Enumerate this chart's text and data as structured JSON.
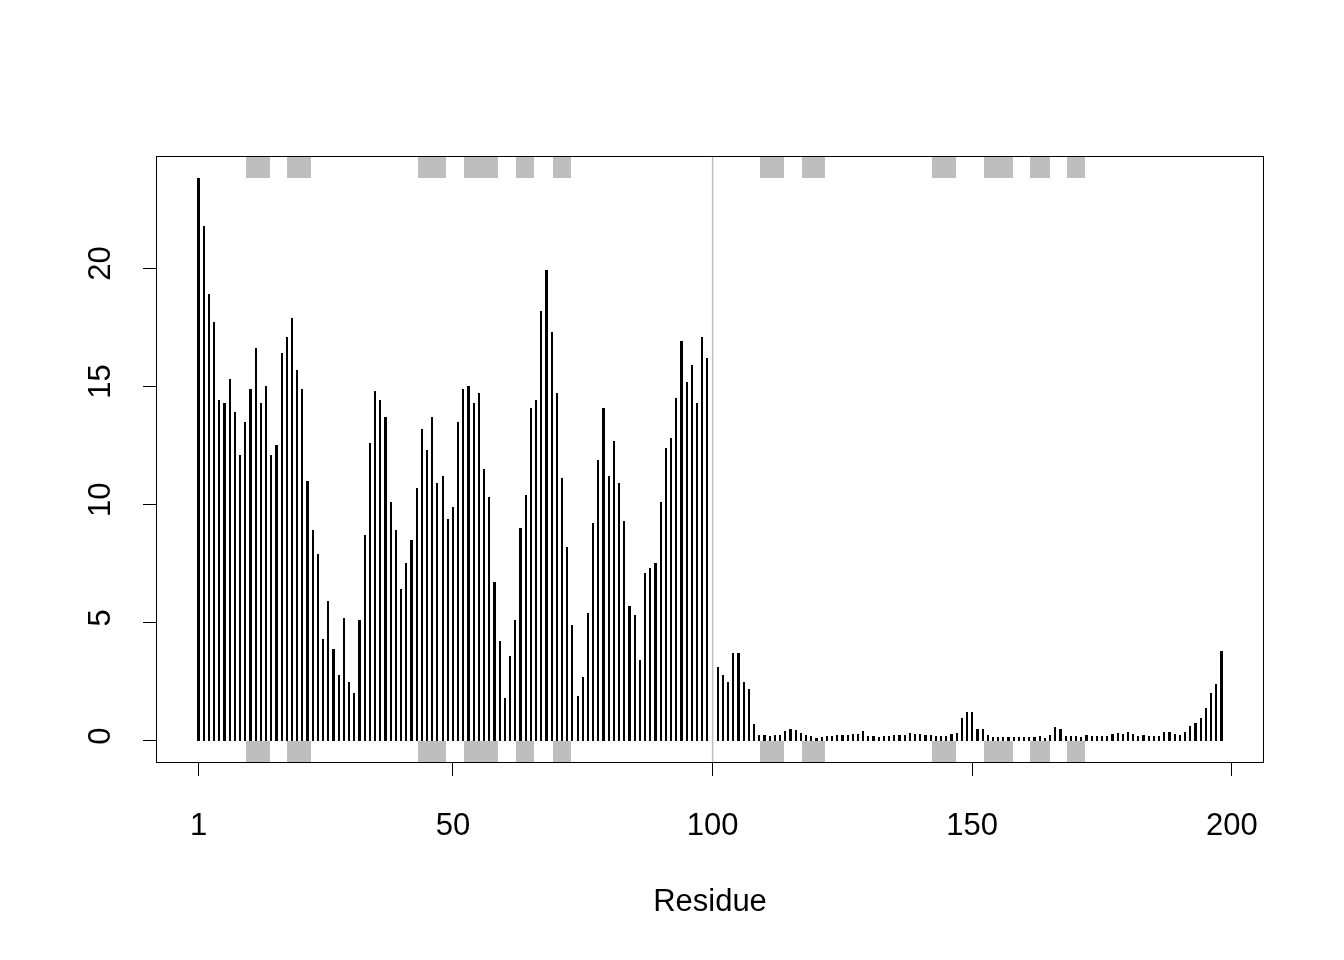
{
  "chart_data": [
    {
      "type": "bar",
      "xlabel": "Residue",
      "color": "#000000",
      "x": [
        1,
        2,
        3,
        4,
        5,
        6,
        7,
        8,
        9,
        10,
        11,
        12,
        13,
        14,
        15,
        16,
        17,
        18,
        19,
        20,
        21,
        22,
        23,
        24,
        25,
        26,
        27,
        28,
        29,
        30,
        31,
        32,
        33,
        34,
        35,
        36,
        37,
        38,
        39,
        40,
        41,
        42,
        43,
        44,
        45,
        46,
        47,
        48,
        49,
        50,
        51,
        52,
        53,
        54,
        55,
        56,
        57,
        58,
        59,
        60,
        61,
        62,
        63,
        64,
        65,
        66,
        67,
        68,
        69,
        70,
        71,
        72,
        73,
        74,
        75,
        76,
        77,
        78,
        79,
        80,
        81,
        82,
        83,
        84,
        85,
        86,
        87,
        88,
        89,
        90,
        91,
        92,
        93,
        94,
        95,
        96,
        97,
        98,
        99,
        100,
        101,
        102,
        103,
        104,
        105,
        106,
        107,
        108,
        109,
        110,
        111,
        112,
        113,
        114,
        115,
        116,
        117,
        118,
        119,
        120,
        121,
        122,
        123,
        124,
        125,
        126,
        127,
        128,
        129,
        130,
        131,
        132,
        133,
        134,
        135,
        136,
        137,
        138,
        139,
        140,
        141,
        142,
        143,
        144,
        145,
        146,
        147,
        148,
        149,
        150,
        151,
        152,
        153,
        154,
        155,
        156,
        157,
        158,
        159,
        160,
        161,
        162,
        163,
        164,
        165,
        166,
        167,
        168,
        169,
        170,
        171,
        172,
        173,
        174,
        175,
        176,
        177,
        178,
        179,
        180,
        181,
        182,
        183,
        184,
        185,
        186,
        187,
        188,
        189,
        190,
        191,
        192,
        193,
        194,
        195,
        196,
        197,
        198
      ],
      "values": [
        23.8,
        21.8,
        18.9,
        17.7,
        14.4,
        14.3,
        15.3,
        13.9,
        12.1,
        13.5,
        14.9,
        16.6,
        14.3,
        15.0,
        12.1,
        12.5,
        16.4,
        17.1,
        17.9,
        15.7,
        14.9,
        11.0,
        8.9,
        7.9,
        4.3,
        5.9,
        3.9,
        2.8,
        5.2,
        2.5,
        2.0,
        5.1,
        8.7,
        12.6,
        14.8,
        14.4,
        13.7,
        10.1,
        8.9,
        6.4,
        7.5,
        8.5,
        10.7,
        13.2,
        12.3,
        13.7,
        10.9,
        11.2,
        9.4,
        9.9,
        13.5,
        14.9,
        15.0,
        14.3,
        14.7,
        11.5,
        10.3,
        6.7,
        4.2,
        1.8,
        3.6,
        5.1,
        9.0,
        10.4,
        14.1,
        14.4,
        18.2,
        19.9,
        17.3,
        14.7,
        11.1,
        8.2,
        4.9,
        1.9,
        2.7,
        5.4,
        9.2,
        11.9,
        14.1,
        11.2,
        12.7,
        10.9,
        9.3,
        5.7,
        5.3,
        3.4,
        7.1,
        7.3,
        7.5,
        10.1,
        12.4,
        12.8,
        14.5,
        16.9,
        15.2,
        15.9,
        14.3,
        17.1,
        16.2,
        null,
        3.1,
        2.8,
        2.5,
        3.7,
        3.7,
        2.5,
        2.2,
        0.7,
        0.25,
        0.25,
        0.2,
        0.23,
        0.24,
        0.4,
        0.5,
        0.47,
        0.32,
        0.23,
        0.18,
        0.13,
        0.15,
        0.18,
        0.2,
        0.23,
        0.23,
        0.25,
        0.3,
        0.3,
        0.4,
        0.21,
        0.18,
        0.17,
        0.2,
        0.21,
        0.25,
        0.25,
        0.24,
        0.32,
        0.3,
        0.27,
        0.25,
        0.23,
        0.21,
        0.18,
        0.21,
        0.27,
        0.31,
        0.97,
        1.2,
        1.2,
        0.51,
        0.48,
        0.25,
        0.17,
        0.14,
        0.14,
        0.14,
        0.17,
        0.14,
        0.14,
        0.14,
        0.14,
        0.18,
        0.13,
        0.25,
        0.58,
        0.49,
        0.2,
        0.2,
        0.18,
        0.17,
        0.23,
        0.18,
        0.18,
        0.18,
        0.18,
        0.28,
        0.32,
        0.28,
        0.38,
        0.3,
        0.21,
        0.24,
        0.21,
        0.21,
        0.18,
        0.35,
        0.38,
        0.27,
        0.25,
        0.37,
        0.61,
        0.73,
        0.97,
        1.4,
        2.0,
        2.4,
        3.8
      ],
      "xlim": [
        -7.0,
        206.0
      ],
      "ylim": [
        -0.9,
        24.7
      ],
      "xticks": [
        1,
        50,
        100,
        150,
        200
      ],
      "yticks": [
        0,
        5,
        10,
        15,
        20
      ],
      "ref_lines": [
        {
          "axis": "x",
          "value": 100,
          "color": "#bebebe"
        }
      ]
    },
    {
      "type": "bar",
      "orientation": "horizontal",
      "categories": [
        null,
        null
      ],
      "xlim": [
        -7.0,
        206.0
      ],
      "tick_labels": false,
      "series": [
        {
          "color": "#bebebe",
          "base": [
            10.1,
            10.1
          ],
          "values": [
            4.6,
            4.6
          ]
        },
        {
          "color": "#bebebe",
          "base": [
            18.1,
            18.1
          ],
          "values": [
            4.6,
            4.6
          ]
        },
        {
          "color": "#bebebe",
          "base": [
            43.2,
            43.2
          ],
          "values": [
            5.5,
            5.5
          ]
        },
        {
          "color": "#bebebe",
          "base": [
            52.1,
            52.1
          ],
          "values": [
            6.6,
            6.6
          ]
        },
        {
          "color": "#bebebe",
          "base": [
            62.1,
            62.1
          ],
          "values": [
            3.6,
            3.6
          ]
        },
        {
          "color": "#bebebe",
          "base": [
            69.2,
            69.2
          ],
          "values": [
            3.5,
            3.5
          ]
        },
        {
          "color": "#bebebe",
          "base": [
            109.2,
            109.2
          ],
          "values": [
            4.6,
            4.6
          ]
        },
        {
          "color": "#bebebe",
          "base": [
            117.2,
            117.2
          ],
          "values": [
            4.5,
            4.5
          ]
        },
        {
          "color": "#bebebe",
          "base": [
            142.2,
            142.2
          ],
          "values": [
            4.6,
            4.6
          ]
        },
        {
          "color": "#bebebe",
          "base": [
            152.3,
            152.3
          ],
          "values": [
            5.5,
            5.5
          ]
        },
        {
          "color": "#bebebe",
          "base": [
            161.2,
            161.2
          ],
          "values": [
            3.8,
            3.8
          ]
        },
        {
          "color": "#bebebe",
          "base": [
            168.3,
            168.3
          ],
          "values": [
            3.5,
            3.5
          ]
        }
      ]
    }
  ]
}
